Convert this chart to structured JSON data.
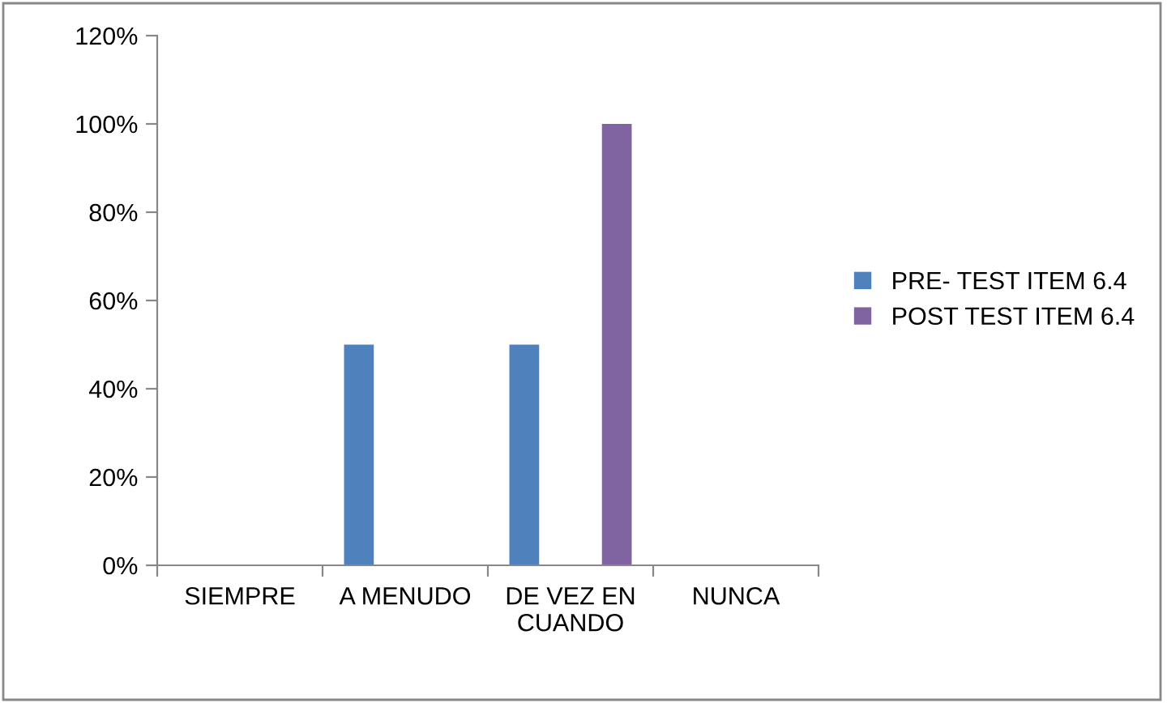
{
  "chart_data": {
    "type": "bar",
    "categories": [
      "SIEMPRE",
      "A MENUDO",
      "DE VEZ EN\nCUANDO",
      "NUNCA"
    ],
    "series": [
      {
        "name": "PRE- TEST ITEM 6.4",
        "color": "#4f81bd",
        "values": [
          0,
          50,
          50,
          0
        ]
      },
      {
        "name": "POST TEST ITEM 6.4",
        "color": "#8064a2",
        "values": [
          0,
          0,
          100,
          0
        ]
      }
    ],
    "ylim": [
      0,
      120
    ],
    "yticks": [
      {
        "value": 0,
        "label": "0%"
      },
      {
        "value": 20,
        "label": "20%"
      },
      {
        "value": 40,
        "label": "40%"
      },
      {
        "value": 60,
        "label": "60%"
      },
      {
        "value": 80,
        "label": "80%"
      },
      {
        "value": 100,
        "label": "100%"
      },
      {
        "value": 120,
        "label": "120%"
      }
    ],
    "grid": false,
    "legend": "right"
  }
}
